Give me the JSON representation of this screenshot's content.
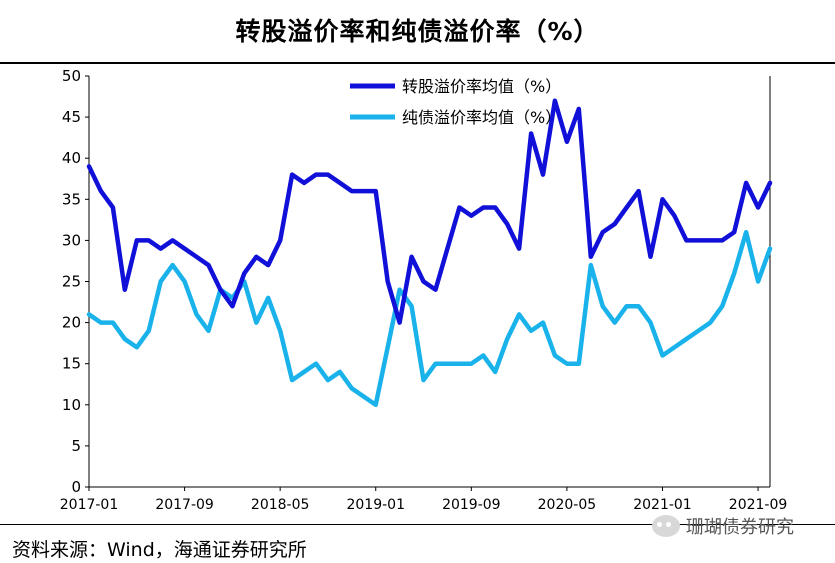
{
  "title": "转股溢价率和纯债溢价率（%）",
  "source": "资料来源：Wind，海通证券研究所",
  "watermark": "珊瑚债券研究",
  "watermark_icon": "wechat-icon",
  "colors": {
    "conversion": "#1010d8",
    "bond": "#1ab2ea"
  },
  "chart_data": {
    "type": "line",
    "title": "",
    "xlabel": "",
    "ylabel": "",
    "ylim": [
      0,
      50
    ],
    "yticks": [
      0,
      5,
      10,
      15,
      20,
      25,
      30,
      35,
      40,
      45,
      50
    ],
    "xlim": [
      "2017-01",
      "2021-10"
    ],
    "xticks": [
      "2017-01",
      "2017-09",
      "2018-05",
      "2019-01",
      "2019-09",
      "2020-05",
      "2021-01",
      "2021-09"
    ],
    "grid": false,
    "legend": "top-center",
    "series": [
      {
        "name": "转股溢价率均值（%）",
        "x": [
          "2017-01",
          "2017-02",
          "2017-03",
          "2017-04",
          "2017-05",
          "2017-06",
          "2017-07",
          "2017-08",
          "2017-09",
          "2017-10",
          "2017-11",
          "2017-12",
          "2018-01",
          "2018-02",
          "2018-03",
          "2018-04",
          "2018-05",
          "2018-06",
          "2018-07",
          "2018-08",
          "2018-09",
          "2018-10",
          "2018-11",
          "2018-12",
          "2019-01",
          "2019-02",
          "2019-03",
          "2019-04",
          "2019-05",
          "2019-06",
          "2019-07",
          "2019-08",
          "2019-09",
          "2019-10",
          "2019-11",
          "2019-12",
          "2020-01",
          "2020-02",
          "2020-03",
          "2020-04",
          "2020-05",
          "2020-06",
          "2020-07",
          "2020-08",
          "2020-09",
          "2020-10",
          "2020-11",
          "2020-12",
          "2021-01",
          "2021-02",
          "2021-03",
          "2021-04",
          "2021-05",
          "2021-06",
          "2021-07",
          "2021-08",
          "2021-09",
          "2021-10"
        ],
        "values": [
          39,
          36,
          34,
          24,
          30,
          30,
          29,
          30,
          29,
          28,
          27,
          24,
          22,
          26,
          28,
          27,
          30,
          38,
          37,
          38,
          38,
          37,
          36,
          36,
          36,
          25,
          20,
          28,
          25,
          24,
          29,
          34,
          33,
          34,
          34,
          32,
          29,
          43,
          38,
          47,
          42,
          46,
          28,
          31,
          32,
          34,
          36,
          28,
          35,
          33,
          30,
          30,
          30,
          30,
          31,
          37,
          34,
          37
        ]
      },
      {
        "name": "纯债溢价率均值（%）",
        "x": [
          "2017-01",
          "2017-02",
          "2017-03",
          "2017-04",
          "2017-05",
          "2017-06",
          "2017-07",
          "2017-08",
          "2017-09",
          "2017-10",
          "2017-11",
          "2017-12",
          "2018-01",
          "2018-02",
          "2018-03",
          "2018-04",
          "2018-05",
          "2018-06",
          "2018-07",
          "2018-08",
          "2018-09",
          "2018-10",
          "2018-11",
          "2018-12",
          "2019-01",
          "2019-02",
          "2019-03",
          "2019-04",
          "2019-05",
          "2019-06",
          "2019-07",
          "2019-08",
          "2019-09",
          "2019-10",
          "2019-11",
          "2019-12",
          "2020-01",
          "2020-02",
          "2020-03",
          "2020-04",
          "2020-05",
          "2020-06",
          "2020-07",
          "2020-08",
          "2020-09",
          "2020-10",
          "2020-11",
          "2020-12",
          "2021-01",
          "2021-02",
          "2021-03",
          "2021-04",
          "2021-05",
          "2021-06",
          "2021-07",
          "2021-08",
          "2021-09",
          "2021-10"
        ],
        "values": [
          21,
          20,
          20,
          18,
          17,
          19,
          25,
          27,
          25,
          21,
          19,
          24,
          23,
          25,
          20,
          23,
          19,
          13,
          14,
          15,
          13,
          14,
          12,
          11,
          10,
          17,
          24,
          22,
          13,
          15,
          15,
          15,
          15,
          16,
          14,
          18,
          21,
          19,
          20,
          16,
          15,
          15,
          27,
          22,
          20,
          22,
          22,
          20,
          16,
          17,
          18,
          19,
          20,
          22,
          26,
          31,
          25,
          29
        ]
      }
    ]
  }
}
